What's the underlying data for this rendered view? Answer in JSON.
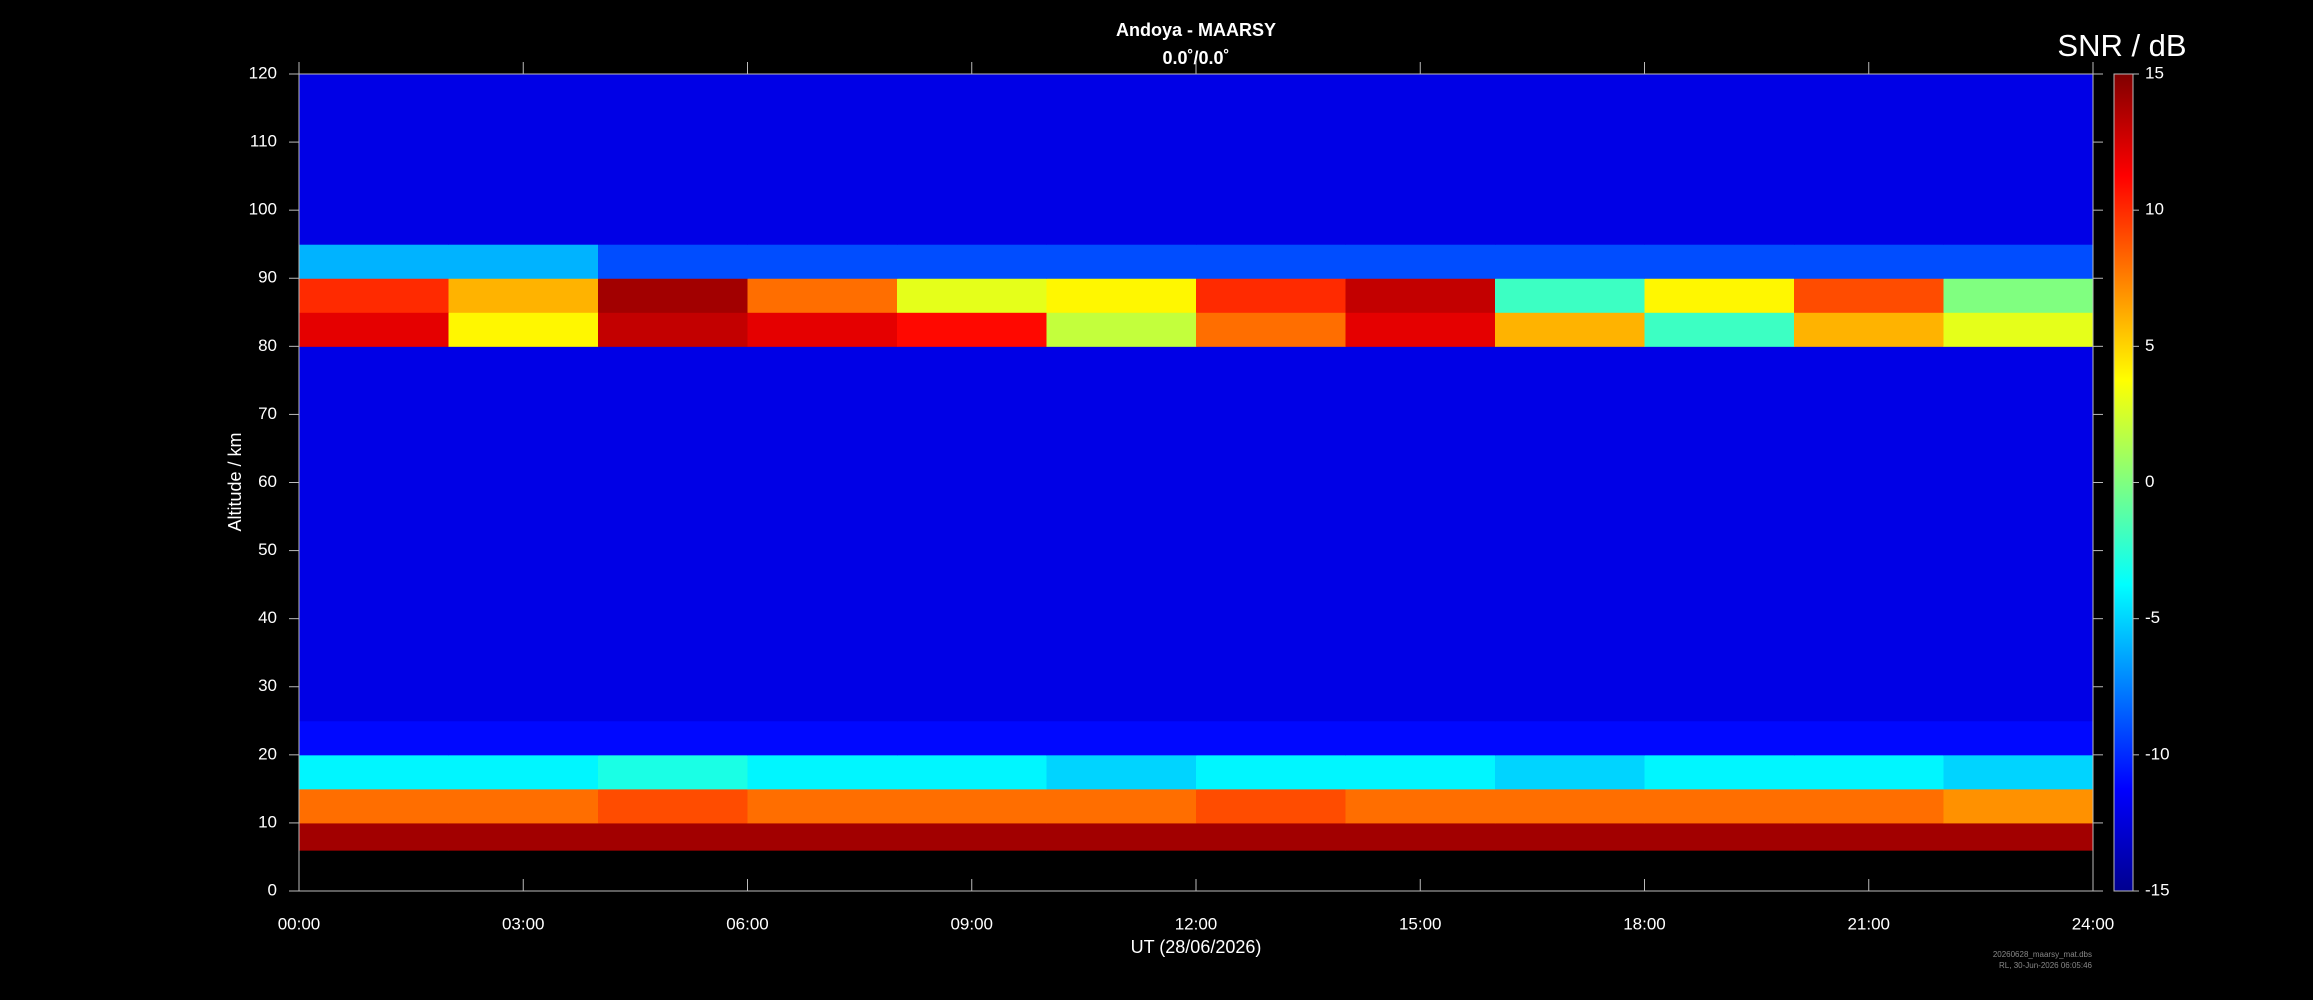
{
  "chart_data": {
    "type": "heatmap",
    "title": "Andoya - MAARSY",
    "subtitle": "0.0˚/0.0˚",
    "x_label": "UT (28/06/2026)",
    "y_label": "Altitude / km",
    "colorbar_label": "SNR / dB",
    "footer": [
      "20260628_maarsy_mat.dbs",
      "RL, 30-Jun-2026 06:05:46"
    ],
    "colormap": "jet",
    "x_bins": [
      0,
      2,
      4,
      6,
      8,
      10,
      12,
      14,
      16,
      18,
      20,
      22,
      24
    ],
    "y_bins": [
      6,
      10,
      15,
      20,
      25,
      30,
      35,
      40,
      45,
      50,
      55,
      60,
      65,
      70,
      75,
      80,
      85,
      90,
      95,
      100,
      105,
      110,
      115,
      120
    ],
    "z": [
      [
        14,
        14,
        14,
        14,
        14,
        14,
        14,
        14,
        14,
        14,
        14,
        14
      ],
      [
        8,
        8,
        9,
        8,
        8,
        8,
        9,
        8,
        8,
        8,
        8,
        7
      ],
      [
        -4,
        -4,
        -3,
        -4,
        -4,
        -5,
        -4,
        -4,
        -5,
        -4,
        -4,
        -5
      ],
      [
        -11,
        -11,
        -11,
        -11,
        -11,
        -11,
        -11,
        -11,
        -11,
        -11,
        -11,
        -11
      ],
      [
        -12,
        -12,
        -12,
        -12,
        -12,
        -12,
        -12,
        -12,
        -12,
        -12,
        -12,
        -12
      ],
      [
        -12,
        -12,
        -12,
        -12,
        -12,
        -12,
        -12,
        -12,
        -12,
        -12,
        -12,
        -12
      ],
      [
        -12,
        -12,
        -12,
        -12,
        -12,
        -12,
        -12,
        -12,
        -12,
        -12,
        -12,
        -12
      ],
      [
        -12,
        -12,
        -12,
        -12,
        -12,
        -12,
        -12,
        -12,
        -12,
        -12,
        -12,
        -12
      ],
      [
        -12,
        -12,
        -12,
        -12,
        -12,
        -12,
        -12,
        -12,
        -12,
        -12,
        -12,
        -12
      ],
      [
        -12,
        -12,
        -12,
        -12,
        -12,
        -12,
        -12,
        -12,
        -12,
        -12,
        -12,
        -12
      ],
      [
        -12,
        -12,
        -12,
        -12,
        -12,
        -12,
        -12,
        -12,
        -12,
        -12,
        -12,
        -12
      ],
      [
        -12,
        -12,
        -12,
        -12,
        -12,
        -12,
        -12,
        -12,
        -12,
        -12,
        -12,
        -12
      ],
      [
        -12,
        -12,
        -12,
        -12,
        -12,
        -12,
        -12,
        -12,
        -12,
        -12,
        -12,
        -12
      ],
      [
        -12,
        -12,
        -12,
        -12,
        -12,
        -12,
        -12,
        -12,
        -12,
        -12,
        -12,
        -12
      ],
      [
        -12,
        -12,
        -12,
        -12,
        -12,
        -12,
        -12,
        -12,
        -12,
        -12,
        -12,
        -12
      ],
      [
        12,
        4,
        13,
        12,
        11,
        2,
        8,
        12,
        6,
        -2,
        6,
        3
      ],
      [
        10,
        6,
        14,
        8,
        3,
        4,
        10,
        13,
        -2,
        4,
        9,
        0
      ],
      [
        -6,
        -6,
        -9,
        -9,
        -9,
        -9,
        -9,
        -9,
        -9,
        -9,
        -9,
        -9
      ],
      [
        -12,
        -12,
        -12,
        -12,
        -12,
        -12,
        -12,
        -12,
        -12,
        -12,
        -12,
        -12
      ],
      [
        -12,
        -12,
        -12,
        -12,
        -12,
        -12,
        -12,
        -12,
        -12,
        -12,
        -12,
        -12
      ],
      [
        -12,
        -12,
        -12,
        -12,
        -12,
        -12,
        -12,
        -12,
        -12,
        -12,
        -12,
        -12
      ],
      [
        -12,
        -12,
        -12,
        -12,
        -12,
        -12,
        -12,
        -12,
        -12,
        -12,
        -12,
        -12
      ],
      [
        -12,
        -12,
        -12,
        -12,
        -12,
        -12,
        -12,
        -12,
        -12,
        -12,
        -12,
        -12
      ]
    ],
    "xlim": [
      0,
      24
    ],
    "xticks": [
      {
        "value": 0,
        "label": "00:00"
      },
      {
        "value": 3,
        "label": "03:00"
      },
      {
        "value": 6,
        "label": "06:00"
      },
      {
        "value": 9,
        "label": "09:00"
      },
      {
        "value": 12,
        "label": "12:00"
      },
      {
        "value": 15,
        "label": "15:00"
      },
      {
        "value": 18,
        "label": "18:00"
      },
      {
        "value": 21,
        "label": "21:00"
      },
      {
        "value": 24,
        "label": "24:00"
      }
    ],
    "ylim": [
      0,
      120
    ],
    "yticks": [
      0,
      10,
      20,
      30,
      40,
      50,
      60,
      70,
      80,
      90,
      100,
      110,
      120
    ],
    "clim": [
      -15,
      15
    ],
    "cticks": [
      -15,
      -10,
      -5,
      0,
      5,
      10,
      15
    ]
  }
}
